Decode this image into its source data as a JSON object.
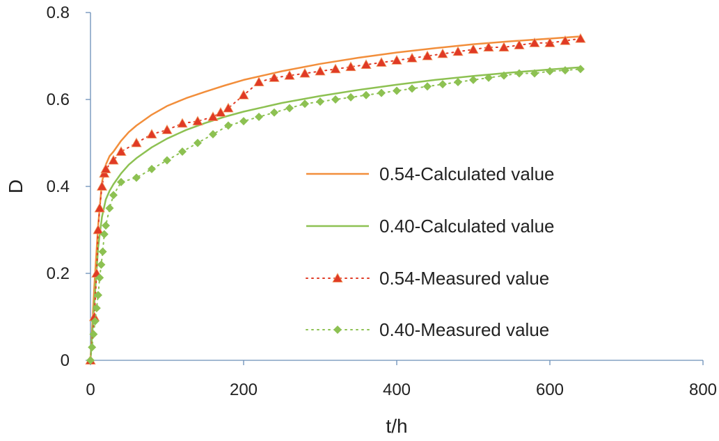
{
  "chart_data": {
    "type": "line",
    "title": "",
    "xlabel": "t/h",
    "ylabel": "D",
    "xlim": [
      0,
      800
    ],
    "ylim": [
      0,
      0.8
    ],
    "x_ticks": [
      0,
      200,
      400,
      600,
      800
    ],
    "y_ticks": [
      0,
      0.2,
      0.4,
      0.6,
      0.8
    ],
    "x_tick_labels": [
      "0",
      "200",
      "400",
      "600",
      "800"
    ],
    "y_tick_labels": [
      "0",
      "0.2",
      "0.4",
      "0.6",
      "0.8"
    ],
    "grid": false,
    "legend_position": "center-right",
    "series": [
      {
        "name": "0.54-Calculated value",
        "style": "line",
        "color": "#F28E3B",
        "x": [
          0,
          5,
          10,
          15,
          20,
          25,
          30,
          40,
          50,
          60,
          80,
          100,
          125,
          150,
          175,
          200,
          250,
          300,
          350,
          400,
          450,
          500,
          550,
          600,
          640
        ],
        "y": [
          0,
          0.17,
          0.31,
          0.41,
          0.45,
          0.47,
          0.48,
          0.505,
          0.525,
          0.54,
          0.565,
          0.585,
          0.603,
          0.618,
          0.632,
          0.645,
          0.665,
          0.682,
          0.696,
          0.708,
          0.718,
          0.727,
          0.734,
          0.74,
          0.745
        ]
      },
      {
        "name": "0.40-Calculated value",
        "style": "line",
        "color": "#8DC152",
        "x": [
          0,
          5,
          10,
          15,
          20,
          25,
          30,
          40,
          50,
          60,
          80,
          100,
          125,
          150,
          175,
          200,
          250,
          300,
          350,
          400,
          450,
          500,
          550,
          600,
          640
        ],
        "y": [
          0,
          0.13,
          0.26,
          0.33,
          0.37,
          0.39,
          0.405,
          0.43,
          0.45,
          0.465,
          0.49,
          0.51,
          0.53,
          0.546,
          0.56,
          0.572,
          0.592,
          0.608,
          0.622,
          0.634,
          0.645,
          0.654,
          0.662,
          0.669,
          0.674
        ]
      },
      {
        "name": "0.54-Measured value",
        "style": "dotted-markers",
        "marker": "triangle",
        "color": "#E03A25",
        "x": [
          0,
          5,
          8,
          10,
          12,
          15,
          18,
          20,
          30,
          40,
          60,
          80,
          100,
          120,
          140,
          160,
          170,
          180,
          200,
          220,
          240,
          260,
          280,
          300,
          320,
          340,
          360,
          380,
          400,
          420,
          440,
          460,
          480,
          500,
          520,
          540,
          560,
          580,
          600,
          620,
          640
        ],
        "y": [
          0,
          0.1,
          0.2,
          0.3,
          0.35,
          0.4,
          0.43,
          0.44,
          0.46,
          0.48,
          0.5,
          0.52,
          0.53,
          0.545,
          0.55,
          0.56,
          0.57,
          0.58,
          0.61,
          0.64,
          0.65,
          0.655,
          0.66,
          0.665,
          0.67,
          0.675,
          0.68,
          0.685,
          0.69,
          0.695,
          0.7,
          0.705,
          0.71,
          0.715,
          0.72,
          0.72,
          0.725,
          0.73,
          0.73,
          0.735,
          0.74
        ]
      },
      {
        "name": "0.40-Measured value",
        "style": "dotted-markers",
        "marker": "diamond",
        "color": "#8DC152",
        "x": [
          0,
          2,
          4,
          6,
          8,
          10,
          12,
          14,
          16,
          18,
          20,
          25,
          30,
          40,
          60,
          80,
          100,
          120,
          140,
          160,
          180,
          200,
          220,
          240,
          260,
          280,
          300,
          320,
          340,
          360,
          380,
          400,
          420,
          440,
          460,
          480,
          500,
          520,
          540,
          560,
          580,
          600,
          620,
          640
        ],
        "y": [
          0,
          0.03,
          0.06,
          0.09,
          0.12,
          0.15,
          0.19,
          0.22,
          0.25,
          0.29,
          0.31,
          0.35,
          0.38,
          0.41,
          0.42,
          0.44,
          0.46,
          0.48,
          0.5,
          0.52,
          0.54,
          0.55,
          0.56,
          0.57,
          0.58,
          0.59,
          0.595,
          0.6,
          0.605,
          0.61,
          0.615,
          0.62,
          0.625,
          0.63,
          0.635,
          0.64,
          0.645,
          0.65,
          0.655,
          0.66,
          0.66,
          0.665,
          0.667,
          0.67
        ]
      }
    ]
  }
}
